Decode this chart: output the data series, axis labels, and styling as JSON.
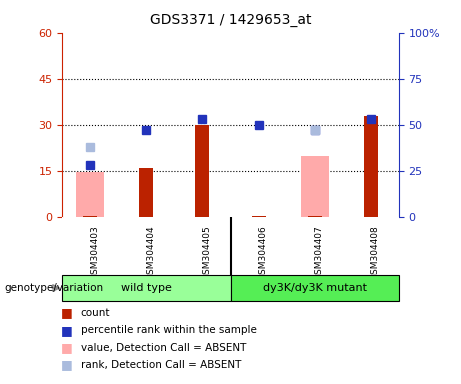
{
  "title": "GDS3371 / 1429653_at",
  "samples": [
    "GSM304403",
    "GSM304404",
    "GSM304405",
    "GSM304406",
    "GSM304407",
    "GSM304408"
  ],
  "red_bars": [
    0.3,
    16.0,
    30.0,
    0.3,
    0.3,
    33.0
  ],
  "pink_bars": [
    14.5,
    0,
    0,
    0,
    20.0,
    0
  ],
  "blue_squares": [
    28.0,
    47.0,
    53.0,
    50.0,
    47.0,
    53.0
  ],
  "lightblue_squares": [
    38.0,
    0,
    0,
    0,
    47.0,
    0
  ],
  "left_ylim": [
    0,
    60
  ],
  "left_yticks": [
    0,
    15,
    30,
    45,
    60
  ],
  "right_ylim": [
    0,
    100
  ],
  "right_yticks": [
    0,
    25,
    50,
    75,
    100
  ],
  "right_yticklabels": [
    "0",
    "25",
    "50",
    "75",
    "100%"
  ],
  "group1": "wild type",
  "group2": "dy3K/dy3K mutant",
  "group_label": "genotype/variation",
  "red_color": "#bb2200",
  "pink_color": "#ffaaaa",
  "blue_color": "#2233bb",
  "lightblue_color": "#aabbdd",
  "group1_color": "#99ff99",
  "group2_color": "#55ee55",
  "title_color": "#000000",
  "left_axis_color": "#cc2200",
  "right_axis_color": "#2233bb",
  "grid_color": "#000000",
  "marker_size": 6
}
